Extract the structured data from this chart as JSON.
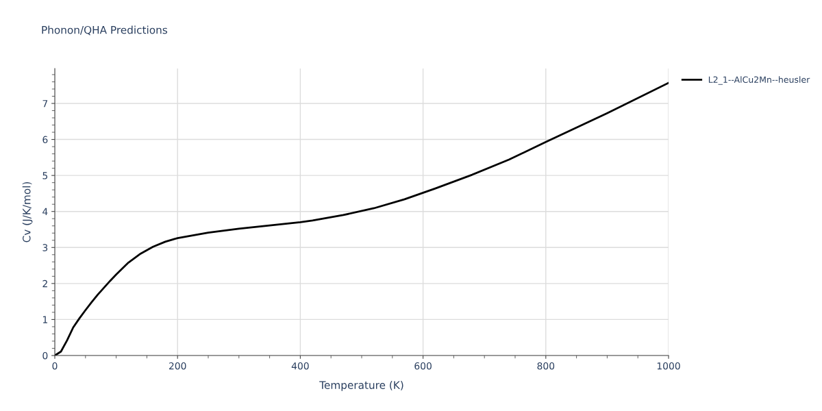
{
  "chart_data": {
    "type": "line",
    "title": "Phonon/QHA Predictions",
    "xlabel": "Temperature (K)",
    "ylabel": "Cv (J/K/mol)",
    "x": [
      0,
      10,
      20,
      30,
      40,
      50,
      60,
      70,
      80,
      90,
      100,
      120,
      140,
      160,
      180,
      200,
      250,
      300,
      350,
      400,
      420,
      470,
      520,
      570,
      620,
      680,
      740,
      800,
      900,
      1000
    ],
    "series": [
      {
        "name": "L2_1--AlCu2Mn--heusler",
        "color": "#000000",
        "values": [
          0,
          0.11,
          0.42,
          0.78,
          1.03,
          1.26,
          1.48,
          1.69,
          1.88,
          2.07,
          2.25,
          2.58,
          2.83,
          3.02,
          3.16,
          3.26,
          3.41,
          3.52,
          3.61,
          3.7,
          3.75,
          3.9,
          4.09,
          4.34,
          4.64,
          5.02,
          5.44,
          5.93,
          6.73,
          7.57
        ]
      }
    ],
    "xlim": [
      0,
      1000
    ],
    "xticks": [
      0,
      200,
      400,
      600,
      800,
      1000
    ],
    "ylim": [
      0,
      7.97
    ],
    "yticks": [
      0,
      1,
      2,
      3,
      4,
      5,
      6,
      7
    ],
    "grid": true,
    "legend": "top right",
    "marker": "none",
    "line_style": "solid"
  }
}
